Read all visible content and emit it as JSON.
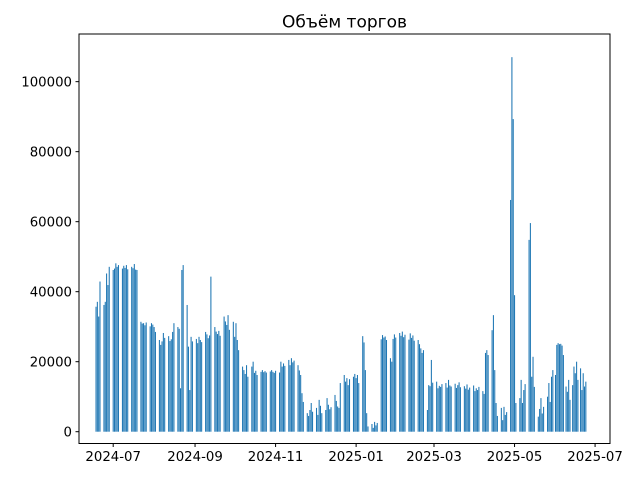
{
  "chart_data": {
    "type": "bar",
    "title": "Объём торгов",
    "xlabel": "",
    "ylabel": "",
    "legend": "none",
    "grid": false,
    "background_color": "#ffffff",
    "bar_color": "#1f77b4",
    "spine_color": "#000000",
    "x_axis_kind": "date",
    "x_day0_date": "2024-06-18",
    "xlim_days": [
      -12.9,
      389.3
    ],
    "ylim": [
      -3371,
      113614
    ],
    "y_ticks": [
      0,
      20000,
      40000,
      60000,
      80000,
      100000
    ],
    "y_tick_labels": [
      "0",
      "20000",
      "40000",
      "60000",
      "80000",
      "100000"
    ],
    "x_tick_days": [
      13,
      75,
      136,
      197,
      256,
      317,
      378
    ],
    "x_tick_labels": [
      "2024-07",
      "2024-09",
      "2024-11",
      "2025-01",
      "2025-03",
      "2025-05",
      "2025-07"
    ],
    "bar_width_days": 0.8,
    "bars": [
      [
        0,
        35700
      ],
      [
        1,
        37100
      ],
      [
        2,
        32900
      ],
      [
        3,
        42900
      ],
      [
        6,
        36200
      ],
      [
        7,
        37100
      ],
      [
        8,
        45200
      ],
      [
        9,
        41900
      ],
      [
        10,
        47100
      ],
      [
        13,
        46200
      ],
      [
        14,
        46600
      ],
      [
        15,
        48100
      ],
      [
        16,
        47100
      ],
      [
        17,
        47600
      ],
      [
        20,
        46600
      ],
      [
        21,
        47400
      ],
      [
        22,
        46800
      ],
      [
        23,
        47600
      ],
      [
        24,
        46400
      ],
      [
        27,
        47100
      ],
      [
        28,
        46700
      ],
      [
        29,
        47900
      ],
      [
        30,
        46300
      ],
      [
        31,
        46200
      ],
      [
        34,
        31400
      ],
      [
        35,
        30900
      ],
      [
        36,
        31000
      ],
      [
        37,
        30400
      ],
      [
        38,
        31200
      ],
      [
        41,
        30100
      ],
      [
        42,
        31000
      ],
      [
        43,
        30600
      ],
      [
        44,
        29900
      ],
      [
        45,
        28500
      ],
      [
        48,
        26200
      ],
      [
        49,
        24800
      ],
      [
        50,
        25800
      ],
      [
        51,
        28200
      ],
      [
        52,
        26800
      ],
      [
        55,
        27300
      ],
      [
        56,
        25900
      ],
      [
        57,
        26400
      ],
      [
        58,
        28500
      ],
      [
        59,
        31000
      ],
      [
        62,
        29900
      ],
      [
        63,
        29400
      ],
      [
        64,
        12400
      ],
      [
        65,
        46200
      ],
      [
        66,
        47600
      ],
      [
        69,
        36200
      ],
      [
        70,
        24300
      ],
      [
        71,
        11900
      ],
      [
        72,
        27100
      ],
      [
        73,
        25800
      ],
      [
        76,
        26500
      ],
      [
        77,
        25300
      ],
      [
        78,
        27100
      ],
      [
        79,
        26200
      ],
      [
        80,
        25600
      ],
      [
        83,
        28500
      ],
      [
        84,
        27800
      ],
      [
        85,
        26700
      ],
      [
        86,
        27500
      ],
      [
        87,
        44300
      ],
      [
        90,
        29900
      ],
      [
        91,
        28600
      ],
      [
        92,
        27900
      ],
      [
        93,
        28800
      ],
      [
        94,
        27400
      ],
      [
        97,
        32900
      ],
      [
        98,
        31500
      ],
      [
        99,
        30500
      ],
      [
        100,
        33300
      ],
      [
        101,
        29100
      ],
      [
        104,
        31400
      ],
      [
        105,
        27100
      ],
      [
        106,
        31000
      ],
      [
        107,
        26200
      ],
      [
        108,
        23300
      ],
      [
        111,
        18600
      ],
      [
        112,
        17600
      ],
      [
        113,
        16500
      ],
      [
        114,
        19000
      ],
      [
        115,
        15700
      ],
      [
        118,
        18600
      ],
      [
        119,
        20000
      ],
      [
        120,
        16800
      ],
      [
        121,
        17400
      ],
      [
        122,
        16200
      ],
      [
        125,
        17100
      ],
      [
        126,
        17600
      ],
      [
        127,
        17000
      ],
      [
        128,
        17300
      ],
      [
        129,
        16900
      ],
      [
        132,
        17200
      ],
      [
        133,
        17600
      ],
      [
        134,
        17100
      ],
      [
        135,
        16800
      ],
      [
        136,
        17400
      ],
      [
        139,
        16900
      ],
      [
        140,
        20000
      ],
      [
        141,
        18600
      ],
      [
        142,
        19500
      ],
      [
        143,
        18800
      ],
      [
        146,
        20500
      ],
      [
        147,
        19000
      ],
      [
        148,
        21000
      ],
      [
        149,
        19800
      ],
      [
        150,
        20300
      ],
      [
        153,
        19000
      ],
      [
        154,
        17500
      ],
      [
        155,
        16200
      ],
      [
        156,
        11000
      ],
      [
        157,
        8500
      ],
      [
        160,
        5300
      ],
      [
        161,
        4500
      ],
      [
        162,
        6200
      ],
      [
        163,
        8200
      ],
      [
        164,
        5700
      ],
      [
        167,
        6800
      ],
      [
        168,
        4800
      ],
      [
        169,
        9100
      ],
      [
        170,
        7400
      ],
      [
        171,
        5300
      ],
      [
        174,
        6200
      ],
      [
        175,
        9600
      ],
      [
        176,
        7700
      ],
      [
        177,
        6400
      ],
      [
        178,
        7000
      ],
      [
        181,
        10500
      ],
      [
        182,
        8800
      ],
      [
        183,
        7200
      ],
      [
        184,
        6800
      ],
      [
        185,
        13900
      ],
      [
        188,
        16200
      ],
      [
        189,
        14300
      ],
      [
        190,
        15300
      ],
      [
        191,
        13300
      ],
      [
        192,
        15000
      ],
      [
        195,
        15700
      ],
      [
        196,
        16500
      ],
      [
        197,
        15300
      ],
      [
        198,
        16200
      ],
      [
        199,
        13900
      ],
      [
        202,
        27300
      ],
      [
        203,
        25500
      ],
      [
        204,
        17600
      ],
      [
        205,
        5300
      ],
      [
        206,
        1500
      ],
      [
        209,
        2200
      ],
      [
        210,
        1100
      ],
      [
        211,
        2800
      ],
      [
        212,
        1800
      ],
      [
        213,
        2500
      ],
      [
        216,
        26400
      ],
      [
        217,
        27600
      ],
      [
        218,
        26900
      ],
      [
        219,
        27200
      ],
      [
        220,
        26200
      ],
      [
        223,
        21000
      ],
      [
        224,
        20000
      ],
      [
        225,
        26500
      ],
      [
        226,
        27800
      ],
      [
        227,
        26900
      ],
      [
        230,
        28200
      ],
      [
        231,
        27400
      ],
      [
        232,
        28600
      ],
      [
        233,
        27000
      ],
      [
        234,
        27700
      ],
      [
        237,
        26300
      ],
      [
        238,
        28100
      ],
      [
        239,
        26800
      ],
      [
        240,
        27500
      ],
      [
        241,
        26000
      ],
      [
        244,
        26200
      ],
      [
        245,
        25000
      ],
      [
        246,
        23800
      ],
      [
        247,
        22500
      ],
      [
        248,
        23300
      ],
      [
        251,
        6200
      ],
      [
        252,
        13300
      ],
      [
        253,
        13000
      ],
      [
        254,
        20500
      ],
      [
        255,
        14000
      ],
      [
        258,
        14300
      ],
      [
        259,
        12400
      ],
      [
        260,
        13100
      ],
      [
        261,
        12800
      ],
      [
        262,
        13600
      ],
      [
        265,
        13900
      ],
      [
        266,
        12600
      ],
      [
        267,
        14800
      ],
      [
        268,
        13200
      ],
      [
        269,
        12900
      ],
      [
        272,
        13700
      ],
      [
        273,
        12500
      ],
      [
        274,
        13300
      ],
      [
        275,
        14100
      ],
      [
        276,
        12700
      ],
      [
        279,
        13000
      ],
      [
        280,
        12300
      ],
      [
        281,
        13500
      ],
      [
        282,
        12000
      ],
      [
        283,
        12600
      ],
      [
        286,
        13200
      ],
      [
        287,
        11600
      ],
      [
        288,
        12400
      ],
      [
        289,
        11900
      ],
      [
        290,
        12800
      ],
      [
        293,
        11600
      ],
      [
        294,
        10800
      ],
      [
        295,
        22500
      ],
      [
        296,
        23300
      ],
      [
        297,
        21900
      ],
      [
        300,
        29000
      ],
      [
        301,
        33300
      ],
      [
        302,
        17600
      ],
      [
        303,
        8200
      ],
      [
        304,
        4500
      ],
      [
        307,
        6800
      ],
      [
        308,
        3300
      ],
      [
        309,
        7100
      ],
      [
        310,
        4800
      ],
      [
        311,
        5600
      ],
      [
        314,
        66200
      ],
      [
        315,
        107000
      ],
      [
        316,
        89300
      ],
      [
        317,
        39000
      ],
      [
        318,
        8200
      ],
      [
        321,
        9600
      ],
      [
        322,
        14800
      ],
      [
        323,
        8200
      ],
      [
        324,
        11900
      ],
      [
        325,
        13600
      ],
      [
        328,
        54800
      ],
      [
        329,
        59600
      ],
      [
        330,
        15700
      ],
      [
        331,
        21400
      ],
      [
        332,
        12800
      ],
      [
        335,
        4300
      ],
      [
        336,
        6500
      ],
      [
        337,
        9600
      ],
      [
        338,
        5200
      ],
      [
        339,
        7100
      ],
      [
        342,
        10000
      ],
      [
        343,
        13900
      ],
      [
        344,
        8500
      ],
      [
        345,
        15700
      ],
      [
        346,
        17600
      ],
      [
        348,
        16200
      ],
      [
        349,
        24800
      ],
      [
        350,
        25300
      ],
      [
        351,
        25000
      ],
      [
        352,
        25100
      ],
      [
        353,
        24600
      ],
      [
        354,
        21900
      ],
      [
        356,
        12900
      ],
      [
        357,
        11400
      ],
      [
        358,
        14800
      ],
      [
        359,
        9100
      ],
      [
        361,
        13300
      ],
      [
        362,
        18600
      ],
      [
        363,
        16700
      ],
      [
        364,
        20000
      ],
      [
        365,
        14800
      ],
      [
        367,
        18100
      ],
      [
        368,
        11900
      ],
      [
        369,
        16700
      ],
      [
        370,
        12900
      ],
      [
        371,
        14300
      ]
    ]
  }
}
